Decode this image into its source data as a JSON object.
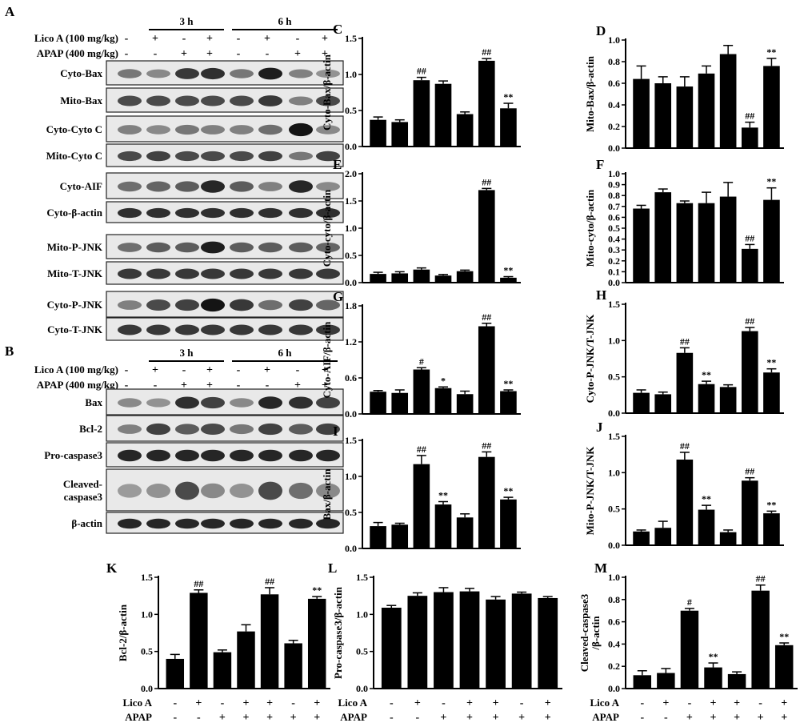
{
  "blots": {
    "a": {
      "letter": "A",
      "time_labels": [
        "3 h",
        "6 h"
      ],
      "row_labels": [
        "Lico A (100 mg/kg)",
        "APAP (400 mg/kg)"
      ],
      "lico": [
        "-",
        "+",
        "-",
        "+",
        "-",
        "+",
        "-",
        "+"
      ],
      "apap": [
        "-",
        "-",
        "+",
        "+",
        "-",
        "-",
        "+",
        "+"
      ],
      "bands": [
        {
          "label": "Cyto-Bax",
          "intensity": [
            0.45,
            0.35,
            0.8,
            0.85,
            0.45,
            0.95,
            0.4,
            0.3
          ]
        },
        {
          "label": "Mito-Bax",
          "intensity": [
            0.7,
            0.7,
            0.7,
            0.7,
            0.7,
            0.8,
            0.4,
            0.7
          ]
        },
        {
          "label": "Cyto-Cyto C",
          "intensity": [
            0.4,
            0.35,
            0.45,
            0.4,
            0.4,
            0.5,
            1.0,
            0.35
          ]
        },
        {
          "label": "Mito-Cyto C",
          "intensity": [
            0.7,
            0.75,
            0.7,
            0.7,
            0.7,
            0.75,
            0.45,
            0.75
          ]
        },
        {
          "label": "Cyto-AIF",
          "intensity": [
            0.5,
            0.55,
            0.6,
            0.9,
            0.6,
            0.4,
            0.9,
            0.35
          ]
        },
        {
          "label": "Cyto-β-actin",
          "intensity": [
            0.85,
            0.85,
            0.85,
            0.85,
            0.85,
            0.85,
            0.85,
            0.85
          ]
        },
        {
          "label": "Mito-P-JNK",
          "intensity": [
            0.5,
            0.6,
            0.6,
            0.95,
            0.6,
            0.6,
            0.6,
            0.55
          ]
        },
        {
          "label": "Mito-T-JNK",
          "intensity": [
            0.8,
            0.8,
            0.8,
            0.8,
            0.8,
            0.8,
            0.8,
            0.8
          ]
        },
        {
          "label": "Cyto-P-JNK",
          "intensity": [
            0.4,
            0.7,
            0.75,
            1.0,
            0.8,
            0.5,
            0.75,
            0.55
          ]
        },
        {
          "label": "Cyto-T-JNK",
          "intensity": [
            0.8,
            0.8,
            0.8,
            0.8,
            0.8,
            0.8,
            0.8,
            0.8
          ]
        }
      ]
    },
    "b": {
      "letter": "B",
      "time_labels": [
        "3 h",
        "6 h"
      ],
      "row_labels": [
        "Lico A (100 mg/kg)",
        "APAP (400 mg/kg)"
      ],
      "lico": [
        "-",
        "+",
        "-",
        "+",
        "-",
        "+",
        "-",
        "+"
      ],
      "apap": [
        "-",
        "-",
        "+",
        "+",
        "-",
        "-",
        "+",
        "+"
      ],
      "bands": [
        {
          "label": "Bax",
          "intensity": [
            0.35,
            0.3,
            0.85,
            0.75,
            0.35,
            0.9,
            0.85,
            0.75
          ]
        },
        {
          "label": "Bcl-2",
          "intensity": [
            0.4,
            0.75,
            0.6,
            0.7,
            0.45,
            0.75,
            0.6,
            0.75
          ]
        },
        {
          "label": "Pro-caspase3",
          "intensity": [
            0.9,
            0.9,
            0.9,
            0.9,
            0.9,
            0.9,
            0.9,
            0.9
          ]
        },
        {
          "label": "Cleaved-\ncaspase3",
          "intensity": [
            0.25,
            0.3,
            0.7,
            0.35,
            0.3,
            0.7,
            0.5,
            0.35
          ]
        },
        {
          "label": "β-actin",
          "intensity": [
            0.9,
            0.9,
            0.9,
            0.9,
            0.9,
            0.9,
            0.9,
            0.9
          ]
        }
      ]
    }
  },
  "chart_data": [
    {
      "letter": "C",
      "type": "bar",
      "ylabel": "Cyto-Bax/β-actin",
      "ylim": [
        0,
        1.5
      ],
      "yticks": [
        "0.0",
        "0.5",
        "1.0",
        "1.5"
      ],
      "values": [
        0.37,
        0.34,
        0.92,
        0.87,
        0.45,
        1.19,
        0.53
      ],
      "errors": [
        0.04,
        0.03,
        0.04,
        0.04,
        0.03,
        0.03,
        0.07
      ],
      "marks": [
        "",
        "",
        "##",
        "",
        "",
        "##",
        "**"
      ]
    },
    {
      "letter": "D",
      "type": "bar",
      "ylabel": "Mito-Bax/β-actin",
      "ylim": [
        0,
        1.0
      ],
      "yticks": [
        "0.0",
        "0.2",
        "0.4",
        "0.6",
        "0.8",
        "1.0"
      ],
      "values": [
        0.64,
        0.6,
        0.57,
        0.69,
        0.87,
        0.19,
        0.76
      ],
      "errors": [
        0.12,
        0.06,
        0.09,
        0.07,
        0.08,
        0.05,
        0.07
      ],
      "marks": [
        "",
        "",
        "",
        "",
        "",
        "##",
        "**"
      ]
    },
    {
      "letter": "E",
      "type": "bar",
      "ylabel": "Cyto-cyto/β-actin",
      "ylim": [
        0,
        2.0
      ],
      "yticks": [
        "0.0",
        "0.5",
        "1.0",
        "1.5",
        "2.0"
      ],
      "values": [
        0.16,
        0.17,
        0.24,
        0.13,
        0.21,
        1.7,
        0.09
      ],
      "errors": [
        0.03,
        0.03,
        0.03,
        0.02,
        0.02,
        0.03,
        0.02
      ],
      "marks": [
        "",
        "",
        "",
        "",
        "",
        "##",
        "**"
      ]
    },
    {
      "letter": "F",
      "type": "bar",
      "ylabel": "Mito-cyto/β-actin",
      "ylim": [
        0,
        1.0
      ],
      "yticks": [
        "0.0",
        "0.1",
        "0.2",
        "0.3",
        "0.4",
        "0.5",
        "0.6",
        "0.7",
        "0.8",
        "0.9",
        "1.0"
      ],
      "values": [
        0.68,
        0.83,
        0.73,
        0.73,
        0.79,
        0.31,
        0.76
      ],
      "errors": [
        0.03,
        0.03,
        0.02,
        0.1,
        0.13,
        0.04,
        0.11
      ],
      "marks": [
        "",
        "",
        "",
        "",
        "",
        "##",
        "**"
      ]
    },
    {
      "letter": "G",
      "type": "bar",
      "ylabel": "Cyto-AIF/β-actin",
      "ylim": [
        0,
        1.8
      ],
      "yticks": [
        "0.0",
        "0.6",
        "1.2",
        "1.8"
      ],
      "values": [
        0.37,
        0.35,
        0.74,
        0.43,
        0.33,
        1.46,
        0.38
      ],
      "errors": [
        0.02,
        0.05,
        0.03,
        0.02,
        0.05,
        0.05,
        0.02
      ],
      "marks": [
        "",
        "",
        "#",
        "*",
        "",
        "##",
        "**"
      ]
    },
    {
      "letter": "H",
      "type": "bar",
      "ylabel": "Cyto-P-JNK/T-JNK",
      "ylim": [
        0,
        1.5
      ],
      "yticks": [
        "0.0",
        "0.5",
        "1.0",
        "1.5"
      ],
      "values": [
        0.28,
        0.26,
        0.83,
        0.4,
        0.36,
        1.13,
        0.56
      ],
      "errors": [
        0.04,
        0.03,
        0.07,
        0.04,
        0.03,
        0.05,
        0.05
      ],
      "marks": [
        "",
        "",
        "##",
        "**",
        "",
        "##",
        "**"
      ]
    },
    {
      "letter": "I",
      "type": "bar",
      "ylabel": "Bax/β-actin",
      "ylim": [
        0,
        1.5
      ],
      "yticks": [
        "0.0",
        "0.5",
        "1.0",
        "1.5"
      ],
      "values": [
        0.31,
        0.33,
        1.17,
        0.61,
        0.43,
        1.27,
        0.68
      ],
      "errors": [
        0.05,
        0.02,
        0.12,
        0.04,
        0.05,
        0.07,
        0.03
      ],
      "marks": [
        "",
        "",
        "##",
        "**",
        "",
        "##",
        "**"
      ]
    },
    {
      "letter": "J",
      "type": "bar",
      "ylabel": "Mito-P-JNK/T-JNK",
      "ylim": [
        0,
        1.5
      ],
      "yticks": [
        "0.0",
        "0.5",
        "1.0",
        "1.5"
      ],
      "values": [
        0.19,
        0.24,
        1.18,
        0.49,
        0.18,
        0.89,
        0.44
      ],
      "errors": [
        0.02,
        0.09,
        0.1,
        0.06,
        0.03,
        0.04,
        0.03
      ],
      "marks": [
        "",
        "",
        "##",
        "**",
        "",
        "##",
        "**"
      ]
    },
    {
      "letter": "K",
      "type": "bar",
      "ylabel": "Bcl-2/β-actin",
      "ylim": [
        0,
        1.5
      ],
      "yticks": [
        "0.0",
        "0.5",
        "1.0",
        "1.5"
      ],
      "values": [
        0.4,
        1.29,
        0.49,
        0.77,
        1.27,
        0.61,
        1.21
      ],
      "errors": [
        0.06,
        0.04,
        0.03,
        0.09,
        0.09,
        0.04,
        0.03
      ],
      "marks": [
        "",
        "##",
        "",
        "",
        "##",
        "",
        "**"
      ],
      "lico": [
        "-",
        "+",
        "-",
        "+",
        "+",
        "-",
        "+"
      ],
      "apap": [
        "-",
        "-",
        "+",
        "+",
        "+",
        "+",
        "+"
      ]
    },
    {
      "letter": "L",
      "type": "bar",
      "ylabel": "Pro-caspase3/β-actin",
      "ylim": [
        0,
        1.5
      ],
      "yticks": [
        "0.0",
        "0.5",
        "1.0",
        "1.5"
      ],
      "values": [
        1.09,
        1.25,
        1.3,
        1.31,
        1.2,
        1.28,
        1.22
      ],
      "errors": [
        0.03,
        0.04,
        0.06,
        0.04,
        0.04,
        0.02,
        0.02
      ],
      "marks": [
        "",
        "",
        "",
        "",
        "",
        "",
        ""
      ],
      "lico": [
        "-",
        "+",
        "-",
        "+",
        "+",
        "-",
        "+"
      ],
      "apap": [
        "-",
        "-",
        "+",
        "+",
        "+",
        "+",
        "+"
      ]
    },
    {
      "letter": "M",
      "type": "bar",
      "ylabel": "Cleaved-caspase3\n/β-actin",
      "ylim": [
        0,
        1.0
      ],
      "yticks": [
        "0.0",
        "0.2",
        "0.4",
        "0.6",
        "0.8",
        "1.0"
      ],
      "values": [
        0.12,
        0.14,
        0.7,
        0.19,
        0.13,
        0.88,
        0.39
      ],
      "errors": [
        0.04,
        0.04,
        0.02,
        0.04,
        0.02,
        0.05,
        0.02
      ],
      "marks": [
        "",
        "",
        "#",
        "**",
        "",
        "##",
        "**"
      ],
      "lico": [
        "-",
        "+",
        "-",
        "+",
        "+",
        "-",
        "+"
      ],
      "apap": [
        "-",
        "-",
        "+",
        "+",
        "+",
        "+",
        "+"
      ]
    }
  ],
  "treatment_labels": {
    "lico": "Lico A",
    "apap": "APAP"
  }
}
